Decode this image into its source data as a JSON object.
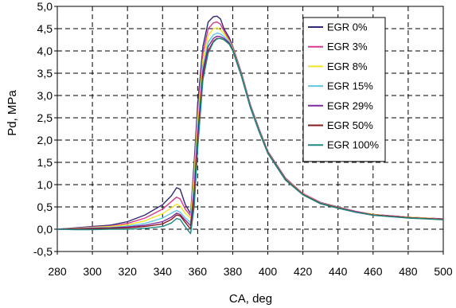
{
  "chart_data": {
    "type": "line",
    "title": "",
    "xlabel": "CA, deg",
    "ylabel": "Pd, MPa",
    "xlim": [
      280,
      500
    ],
    "ylim": [
      -0.5,
      5.0
    ],
    "x_ticks": [
      "280",
      "300",
      "320",
      "340",
      "360",
      "380",
      "400",
      "420",
      "440",
      "460",
      "480",
      "500"
    ],
    "y_ticks": [
      "-0,5",
      "0,0",
      "0,5",
      "1,0",
      "1,5",
      "2,0",
      "2,5",
      "3,0",
      "3,5",
      "4,0",
      "4,5",
      "5,0"
    ],
    "grid": true,
    "grid_style": "dashed",
    "legend_position": "top-right",
    "x": [
      280,
      290,
      300,
      310,
      320,
      330,
      340,
      345,
      348,
      350,
      353,
      356,
      358,
      360,
      363,
      366,
      369,
      371,
      373,
      375,
      378,
      380,
      385,
      390,
      395,
      400,
      410,
      420,
      430,
      440,
      450,
      460,
      470,
      480,
      490,
      500
    ],
    "series": [
      {
        "name": "EGR 0%",
        "color": "#2e2a75",
        "values": [
          0.0,
          0.03,
          0.06,
          0.09,
          0.17,
          0.32,
          0.55,
          0.75,
          0.93,
          0.9,
          0.55,
          0.35,
          1.5,
          2.8,
          4.1,
          4.65,
          4.77,
          4.78,
          4.72,
          4.5,
          4.3,
          4.1,
          3.5,
          2.8,
          2.25,
          1.75,
          1.15,
          0.8,
          0.6,
          0.5,
          0.4,
          0.33,
          0.3,
          0.27,
          0.25,
          0.23
        ]
      },
      {
        "name": "EGR 3%",
        "color": "#d63a8e",
        "values": [
          0.0,
          0.02,
          0.05,
          0.07,
          0.13,
          0.25,
          0.45,
          0.62,
          0.72,
          0.68,
          0.45,
          0.3,
          1.35,
          2.6,
          3.95,
          4.5,
          4.63,
          4.65,
          4.6,
          4.45,
          4.25,
          4.08,
          3.48,
          2.78,
          2.23,
          1.74,
          1.14,
          0.8,
          0.6,
          0.49,
          0.4,
          0.33,
          0.3,
          0.27,
          0.25,
          0.23
        ]
      },
      {
        "name": "EGR 8%",
        "color": "#f2e424",
        "values": [
          0.0,
          0.02,
          0.04,
          0.06,
          0.1,
          0.19,
          0.35,
          0.48,
          0.56,
          0.52,
          0.35,
          0.25,
          1.2,
          2.45,
          3.8,
          4.35,
          4.5,
          4.52,
          4.47,
          4.38,
          4.22,
          4.06,
          3.46,
          2.77,
          2.22,
          1.73,
          1.13,
          0.79,
          0.59,
          0.49,
          0.39,
          0.33,
          0.29,
          0.27,
          0.25,
          0.22
        ]
      },
      {
        "name": "EGR 15%",
        "color": "#5cc8e6",
        "values": [
          0.0,
          0.01,
          0.03,
          0.04,
          0.07,
          0.13,
          0.25,
          0.36,
          0.42,
          0.38,
          0.25,
          0.15,
          1.0,
          2.25,
          3.65,
          4.2,
          4.36,
          4.4,
          4.38,
          4.32,
          4.2,
          4.04,
          3.45,
          2.76,
          2.21,
          1.72,
          1.12,
          0.78,
          0.59,
          0.48,
          0.39,
          0.32,
          0.29,
          0.26,
          0.24,
          0.22
        ]
      },
      {
        "name": "EGR 29%",
        "color": "#7d2a9e",
        "values": [
          0.0,
          0.01,
          0.02,
          0.03,
          0.05,
          0.09,
          0.17,
          0.27,
          0.36,
          0.33,
          0.2,
          0.08,
          0.85,
          2.1,
          3.55,
          4.1,
          4.28,
          4.33,
          4.32,
          4.28,
          4.18,
          4.03,
          3.44,
          2.75,
          2.2,
          1.72,
          1.12,
          0.78,
          0.58,
          0.48,
          0.39,
          0.32,
          0.29,
          0.26,
          0.24,
          0.22
        ]
      },
      {
        "name": "EGR 50%",
        "color": "#8b1a1a",
        "values": [
          0.0,
          0.0,
          0.01,
          0.02,
          0.03,
          0.06,
          0.12,
          0.22,
          0.32,
          0.3,
          0.15,
          0.0,
          0.7,
          1.95,
          3.45,
          4.0,
          4.22,
          4.28,
          4.28,
          4.25,
          4.16,
          4.02,
          3.43,
          2.74,
          2.2,
          1.71,
          1.11,
          0.78,
          0.58,
          0.48,
          0.38,
          0.32,
          0.29,
          0.26,
          0.24,
          0.22
        ]
      },
      {
        "name": "EGR 100%",
        "color": "#1f8a84",
        "values": [
          0.0,
          -0.01,
          -0.01,
          0.0,
          0.0,
          0.02,
          0.06,
          0.14,
          0.24,
          0.22,
          0.05,
          -0.1,
          0.5,
          1.8,
          3.35,
          3.95,
          4.2,
          4.27,
          4.28,
          4.25,
          4.15,
          4.0,
          3.42,
          2.73,
          2.19,
          1.7,
          1.1,
          0.77,
          0.57,
          0.47,
          0.38,
          0.31,
          0.28,
          0.25,
          0.23,
          0.21
        ]
      }
    ]
  }
}
